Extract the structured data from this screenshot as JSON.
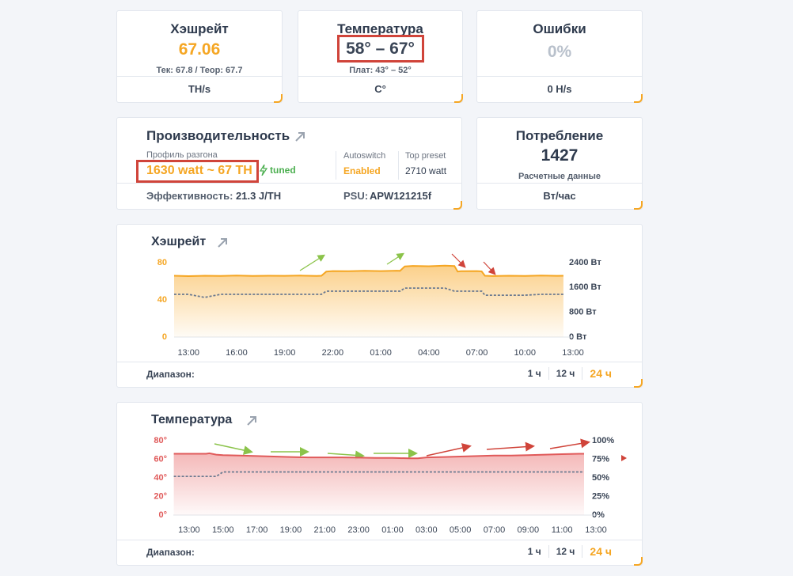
{
  "cards": {
    "hashrate": {
      "title": "Хэшрейт",
      "value": 67.06,
      "detail": "Тек: 67.8 / Теор: 67.7",
      "unit": "TH/s"
    },
    "temperature": {
      "title": "Температура",
      "value": "58° – 67°",
      "detail": "Плат: 43° – 52°",
      "unit": "C°"
    },
    "errors": {
      "title": "Ошибки",
      "value": "0%",
      "unit": "0 H/s"
    },
    "performance": {
      "title": "Производительность",
      "profile_label": "Профиль разгона",
      "profile": "1630 watt ~ 67 TH",
      "status": "tuned",
      "autoswitch_label": "Autoswitch",
      "autoswitch": "Enabled",
      "top_preset_label": "Top preset",
      "top_preset": "2710 watt",
      "efficiency_label": "Эффективность:",
      "efficiency": "21.3 J/TH",
      "psu_label": "PSU:",
      "psu": "APW121215f"
    },
    "consumption": {
      "title": "Потребление",
      "value": 1427,
      "detail": "Расчетные данные",
      "unit": "Вт/час"
    }
  },
  "chart_data": [
    {
      "type": "line",
      "title": "Хэшрейт",
      "x": [
        -0.9,
        0,
        1,
        2,
        3,
        4,
        5,
        6,
        7,
        8,
        8.3,
        8.6,
        9,
        10,
        11,
        12,
        13,
        13.2,
        13.5,
        14,
        15,
        16,
        16.6,
        16.8,
        17,
        18,
        18.3,
        18.5,
        19,
        20,
        21,
        22,
        23,
        23.4
      ],
      "xlim": [
        -0.9,
        24
      ],
      "xticks": [
        {
          "value": 0,
          "label": "13:00"
        },
        {
          "value": 3,
          "label": "16:00"
        },
        {
          "value": 6,
          "label": "19:00"
        },
        {
          "value": 9,
          "label": "22:00"
        },
        {
          "value": 12,
          "label": "01:00"
        },
        {
          "value": 15,
          "label": "04:00"
        },
        {
          "value": 18,
          "label": "07:00"
        },
        {
          "value": 21,
          "label": "10:00"
        },
        {
          "value": 24,
          "label": "13:00"
        }
      ],
      "ylim": [
        0,
        80
      ],
      "yticks": [
        0,
        40,
        80
      ],
      "y2lim": [
        0,
        2400
      ],
      "y2ticks": [
        {
          "value": 0,
          "label": "0 Вт"
        },
        {
          "value": 800,
          "label": "800 Вт"
        },
        {
          "value": 1600,
          "label": "1600 Вт"
        },
        {
          "value": 2400,
          "label": "2400 Вт"
        }
      ],
      "series": [
        {
          "color": "#f5a623",
          "fill": "#fbd08a",
          "values": [
            66,
            65.5,
            66,
            65.8,
            66.2,
            65.7,
            66,
            65.9,
            66.1,
            65.8,
            66,
            70.5,
            71,
            70.8,
            71.2,
            71,
            71.4,
            71.2,
            76,
            76.5,
            76.2,
            76.8,
            76.4,
            70.5,
            70.8,
            71,
            70.6,
            66,
            65.6,
            66,
            65.8,
            66.2,
            65.9,
            66
          ]
        },
        {
          "color": "#6b7a90",
          "dash": true,
          "axis": "y2",
          "values": [
            1380,
            1380,
            1280,
            1380,
            1380,
            1380,
            1380,
            1380,
            1380,
            1380,
            1380,
            1480,
            1480,
            1480,
            1480,
            1480,
            1480,
            1480,
            1580,
            1580,
            1580,
            1580,
            1480,
            1480,
            1480,
            1480,
            1480,
            1350,
            1350,
            1350,
            1350,
            1380,
            1380,
            1380
          ]
        }
      ],
      "range_label": "Диапазон:",
      "ranges": [
        "1 ч",
        "12 ч",
        "24 ч"
      ],
      "active_range": 2
    },
    {
      "type": "line",
      "title": "Температура",
      "x": [
        -0.9,
        0,
        1,
        1.2,
        1.6,
        2,
        3,
        4,
        5,
        6,
        7,
        8,
        9,
        10,
        11,
        12,
        13,
        13.5,
        14,
        15,
        16,
        17,
        18,
        19,
        20,
        21,
        22,
        23,
        23.3
      ],
      "xlim": [
        -0.93,
        24
      ],
      "xticks": [
        {
          "value": 0,
          "label": "13:00"
        },
        {
          "value": 2,
          "label": "15:00"
        },
        {
          "value": 4,
          "label": "17:00"
        },
        {
          "value": 6,
          "label": "19:00"
        },
        {
          "value": 8,
          "label": "21:00"
        },
        {
          "value": 10,
          "label": "23:00"
        },
        {
          "value": 12,
          "label": "01:00"
        },
        {
          "value": 14,
          "label": "03:00"
        },
        {
          "value": 16,
          "label": "05:00"
        },
        {
          "value": 18,
          "label": "07:00"
        },
        {
          "value": 20,
          "label": "09:00"
        },
        {
          "value": 22,
          "label": "11:00"
        },
        {
          "value": 24,
          "label": "13:00"
        }
      ],
      "ylim": [
        0,
        80
      ],
      "yticks": [
        {
          "value": 0,
          "label": "0°"
        },
        {
          "value": 20,
          "label": "20°"
        },
        {
          "value": 40,
          "label": "40°"
        },
        {
          "value": 60,
          "label": "60°"
        },
        {
          "value": 80,
          "label": "80°"
        }
      ],
      "y2lim": [
        0,
        100
      ],
      "y2ticks": [
        {
          "value": 0,
          "label": "0%"
        },
        {
          "value": 25,
          "label": "25%"
        },
        {
          "value": 50,
          "label": "50%"
        },
        {
          "value": 75,
          "label": "75%"
        },
        {
          "value": 100,
          "label": "100%"
        }
      ],
      "series": [
        {
          "color": "#e05a5a",
          "fill": "#f4b8b8",
          "values": [
            66,
            66,
            66,
            66.5,
            65,
            64.5,
            64,
            63.5,
            63,
            62.5,
            62,
            62,
            62,
            61.8,
            61.5,
            61.5,
            61,
            61,
            62,
            62.5,
            63,
            63.5,
            64,
            64,
            64.5,
            65,
            65.5,
            66,
            66
          ]
        },
        {
          "color": "#6b7a90",
          "dash": true,
          "axis": "y2",
          "values": [
            52,
            52,
            52,
            52,
            52,
            58,
            58,
            58,
            58,
            58,
            58,
            58,
            58,
            58,
            58,
            58,
            58,
            58,
            58,
            58,
            58,
            58,
            58,
            58,
            58,
            58,
            58,
            58,
            58
          ]
        }
      ],
      "range_label": "Диапазон:",
      "ranges": [
        "1 ч",
        "12 ч",
        "24 ч"
      ],
      "active_range": 2
    }
  ]
}
